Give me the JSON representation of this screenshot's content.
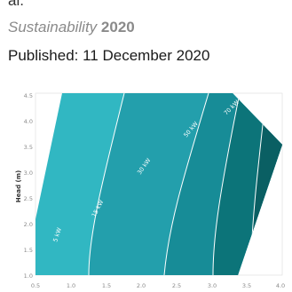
{
  "article": {
    "authors_clipped": "al.",
    "journal": "Sustainability",
    "year": "2020",
    "published_label": "Published: 11 December 2020"
  },
  "figure": {
    "ylabel": "Head (m)",
    "x_ticks": [
      "0.5",
      "1.0",
      "1.5",
      "2.0",
      "2.5",
      "3.0",
      "3.5",
      "4.0"
    ],
    "y_ticks": [
      "1.0",
      "1.5",
      "2.0",
      "2.5",
      "3.0",
      "3.5",
      "4.0",
      "4.5"
    ],
    "contour_labels": [
      "5 kW",
      "15 kW",
      "30 kW",
      "50 kW",
      "70 kW"
    ],
    "colors": {
      "band_1": "#31b7c2",
      "band_2": "#239fac",
      "band_3": "#178c97",
      "band_4": "#0c7479",
      "band_5": "#0a5f63",
      "contour_line": "#ffffff"
    }
  }
}
